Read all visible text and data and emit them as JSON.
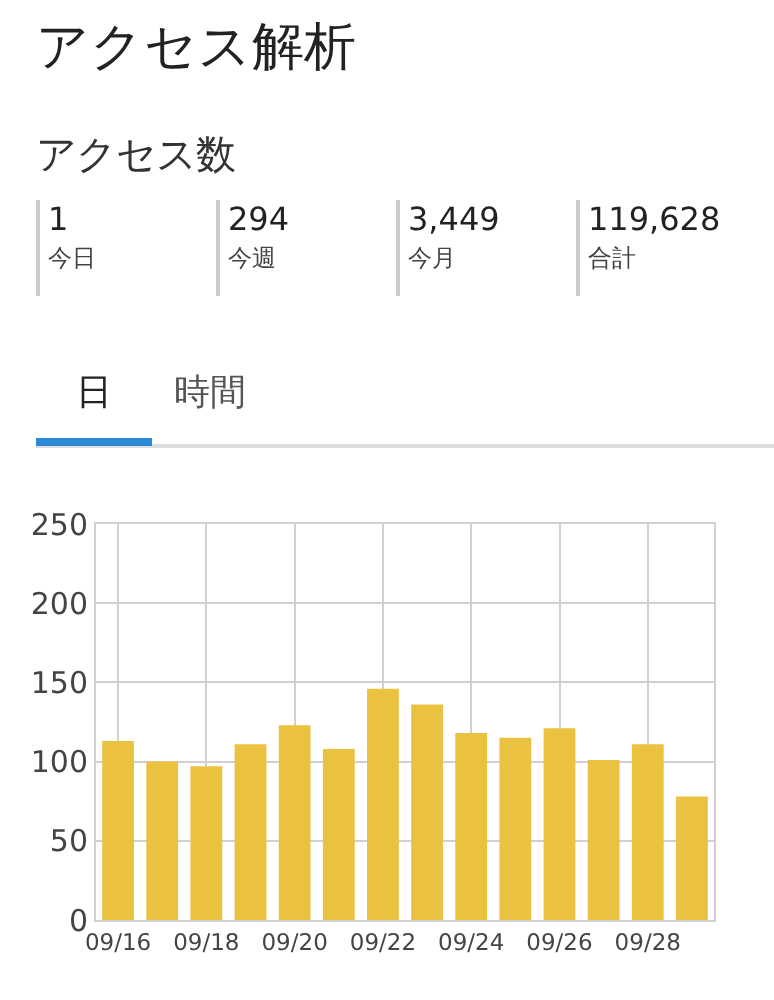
{
  "chart_data": {
    "type": "bar",
    "title": "アクセス解析",
    "subtitle": "アクセス数",
    "annotations": [
      "1",
      "今日",
      "294",
      "今週",
      "3,449",
      "今月",
      "119,628",
      "合計",
      "日",
      "時間"
    ],
    "categories": [
      "09/16",
      null,
      "09/18",
      null,
      "09/20",
      null,
      "09/22",
      null,
      "09/24",
      null,
      "09/26",
      null,
      "09/28",
      null
    ],
    "values": [
      113,
      100,
      97,
      111,
      123,
      108,
      146,
      136,
      118,
      115,
      121,
      101,
      111,
      78
    ],
    "color": "#ebc240",
    "ylim": [
      0,
      250
    ],
    "yticks": [
      0,
      50,
      100,
      150,
      200,
      250
    ],
    "grid": true,
    "legend": false
  }
}
